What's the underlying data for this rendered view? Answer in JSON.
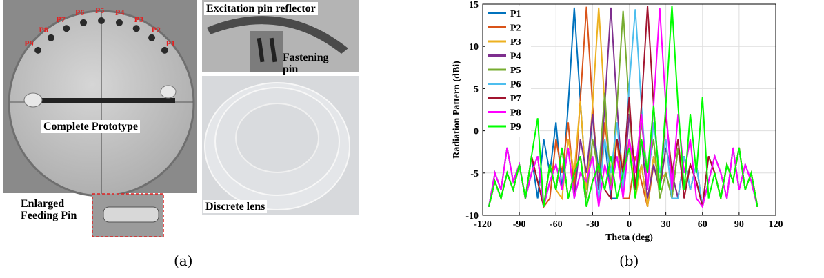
{
  "panel_a": {
    "labels": {
      "reflector": "Excitation pin reflector",
      "fastening": "Fastening pin",
      "prototype": "Complete Prototype",
      "feeding": "Enlarged Feeding Pin",
      "lens": "Discrete lens"
    },
    "pin_labels": [
      "P1",
      "P2",
      "P3",
      "P4",
      "P5",
      "P6",
      "P7",
      "P8",
      "P9"
    ],
    "caption": "(a)"
  },
  "chart_data": {
    "type": "line",
    "caption": "(b)",
    "xlabel": "Theta (deg)",
    "ylabel": "Radiation Pattern (dBi)",
    "x": [
      -115,
      -110,
      -105,
      -100,
      -95,
      -90,
      -85,
      -80,
      -75,
      -70,
      -65,
      -60,
      -55,
      -50,
      -45,
      -40,
      -35,
      -30,
      -25,
      -20,
      -15,
      -10,
      -5,
      0,
      5,
      10,
      15,
      20,
      25,
      30,
      35,
      40,
      45,
      50,
      55,
      60,
      65,
      70,
      75,
      80,
      85,
      90,
      95,
      100,
      105
    ],
    "series": [
      {
        "name": "P1",
        "color": "#0072BD",
        "values": [
          -9,
          -6,
          -8,
          -5,
          -7,
          -4,
          -8,
          -3,
          -8,
          -1,
          -5,
          1,
          -7,
          3,
          14.6,
          3.5,
          -7,
          2,
          -5,
          -1,
          -8,
          -8,
          -5,
          -2,
          -7,
          -4,
          -9,
          -3,
          -6,
          -5,
          -8,
          -2,
          -7,
          -4,
          -6,
          -9,
          -3,
          -5,
          -8,
          -4,
          -6,
          -2,
          -7,
          -5,
          -9
        ]
      },
      {
        "name": "P2",
        "color": "#D95319",
        "values": [
          -9,
          -5,
          -7,
          -2,
          -6,
          -4,
          -8,
          -5,
          -3,
          -9,
          -8,
          -1,
          -5,
          1,
          -7,
          3.8,
          14.7,
          3,
          -7,
          1,
          -5,
          -1,
          -8,
          -8,
          -3,
          -6,
          -9,
          -4,
          -7,
          -2,
          -5,
          -8,
          -3,
          -7,
          -4,
          -9,
          -6,
          -3,
          -5,
          -8,
          -2,
          -7,
          -4,
          -6,
          -9
        ]
      },
      {
        "name": "P3",
        "color": "#EDB120",
        "values": [
          -9,
          -6,
          -8,
          -5,
          -7,
          -4,
          -8,
          -3,
          -6,
          -9,
          -4,
          -7,
          -8,
          -1,
          -5,
          3.5,
          -7,
          3,
          14.6,
          3,
          -7,
          1,
          -5,
          -1,
          -8,
          -4,
          -9,
          -3,
          -6,
          -5,
          -8,
          -2,
          -7,
          -4,
          -6,
          -9,
          -3,
          -5,
          -8,
          -4,
          -6,
          -2,
          -7,
          -5,
          -9
        ]
      },
      {
        "name": "P4",
        "color": "#7E2F8E",
        "values": [
          -9,
          -5,
          -7,
          -2,
          -6,
          -4,
          -8,
          -5,
          -3,
          -9,
          -6,
          -4,
          -7,
          -2,
          -8,
          -1,
          -5,
          2,
          -7,
          3,
          14.6,
          3,
          -7,
          2,
          -5,
          -1,
          -8,
          -4,
          -7,
          -2,
          -5,
          -8,
          -3,
          -7,
          -4,
          -9,
          -6,
          -3,
          -5,
          -8,
          -2,
          -7,
          -4,
          -6,
          -9
        ]
      },
      {
        "name": "P5",
        "color": "#77AC30",
        "values": [
          -9,
          -6,
          -8,
          -5,
          -7,
          -4,
          -8,
          -3,
          -6,
          -9,
          -4,
          -7,
          -2,
          -8,
          -5,
          -3,
          -8,
          -1,
          -5,
          4.5,
          -7,
          3,
          14.2,
          3,
          -7,
          1,
          -5,
          -1,
          -8,
          -5,
          -8,
          -2,
          -7,
          -4,
          -6,
          -9,
          -3,
          -5,
          -8,
          -4,
          -6,
          -2,
          -7,
          -5,
          -9
        ]
      },
      {
        "name": "P6",
        "color": "#4DBEEE",
        "values": [
          -9,
          -5,
          -7,
          -2,
          -6,
          -4,
          -8,
          -5,
          -3,
          -9,
          -6,
          -4,
          -7,
          -2,
          -8,
          -5,
          -6,
          -3,
          -8,
          -1,
          -5,
          1,
          -7,
          5.5,
          14.4,
          3,
          -7,
          1,
          -5,
          -1,
          -8,
          -8,
          -3,
          -7,
          -4,
          -9,
          -6,
          -3,
          -5,
          -8,
          -2,
          -7,
          -4,
          -6,
          -9
        ]
      },
      {
        "name": "P7",
        "color": "#A2142F",
        "values": [
          -9,
          -6,
          -8,
          -5,
          -7,
          -4,
          -8,
          -3,
          -6,
          -9,
          -4,
          -7,
          -2,
          -8,
          -5,
          -3,
          -9,
          -6,
          -4,
          -7,
          -8,
          -1,
          -5,
          4,
          -7,
          3,
          14.8,
          3,
          -7,
          2,
          -5,
          -1,
          -8,
          -4,
          -6,
          -9,
          -3,
          -5,
          -8,
          -4,
          -6,
          -2,
          -7,
          -5,
          -9
        ]
      },
      {
        "name": "P8",
        "color": "#FF00FF",
        "values": [
          -9,
          -5,
          -7,
          -2,
          -6,
          -4,
          -8,
          -5,
          -3,
          -9,
          -6,
          -4,
          -7,
          -2,
          -8,
          -5,
          -6,
          -3,
          -9,
          -4,
          -7,
          -3,
          -8,
          -1,
          -5,
          2,
          -7,
          3,
          14.5,
          3,
          -7,
          2,
          -5,
          -1,
          -8,
          -9,
          -6,
          -3,
          -5,
          -8,
          -2,
          -7,
          -4,
          -6,
          -9
        ]
      },
      {
        "name": "P9",
        "color": "#00FF00",
        "values": [
          -9,
          -6,
          -8,
          -5,
          -7,
          -4,
          -8,
          -3,
          1.5,
          -9,
          -4,
          -7,
          -2,
          -8,
          -5,
          -3,
          -9,
          -6,
          -4,
          -7,
          -3,
          -8,
          -5,
          -2,
          -8,
          -1,
          -5,
          3,
          -7,
          3,
          14.8,
          3,
          -7,
          2,
          -5,
          4,
          -8,
          -5,
          -8,
          -4,
          -6,
          -2,
          -7,
          -5,
          -9
        ]
      }
    ],
    "xlim": [
      -120,
      120
    ],
    "xticks": [
      -120,
      -90,
      -60,
      -30,
      0,
      30,
      60,
      90,
      120
    ],
    "ylim": [
      -10,
      15
    ],
    "yticks": [
      -10,
      -5,
      0,
      5,
      10,
      15
    ],
    "grid": true,
    "legend": "upper-left"
  }
}
